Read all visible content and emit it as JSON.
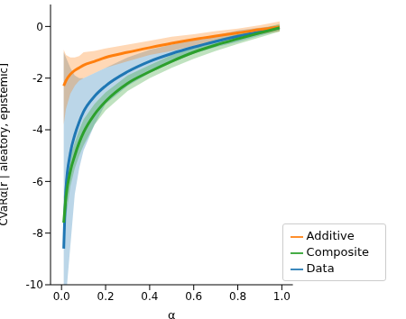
{
  "chart_data": {
    "type": "line",
    "x_label": "α",
    "y_label": "CVaRα[r | aleatory, epistemic]",
    "x": [
      0.01,
      0.02,
      0.04,
      0.06,
      0.08,
      0.1,
      0.15,
      0.2,
      0.3,
      0.4,
      0.5,
      0.6,
      0.7,
      0.8,
      0.9,
      0.99
    ],
    "xlim": [
      -0.05,
      1.05
    ],
    "xticks": [
      {
        "value": 0,
        "label": "0.0"
      },
      {
        "value": 0.2,
        "label": "0.2"
      },
      {
        "value": 0.4,
        "label": "0.4"
      },
      {
        "value": 0.6,
        "label": "0.6"
      },
      {
        "value": 0.8,
        "label": "0.8"
      },
      {
        "value": 1,
        "label": "1.0"
      }
    ],
    "ylim": [
      -10,
      0.85
    ],
    "yticks": [
      -10,
      -8,
      -6,
      -4,
      -2,
      0
    ],
    "legend": "lower right",
    "series": [
      {
        "name": "Data",
        "color": "#1f77b4",
        "values": [
          -8.6,
          -6.3,
          -4.9,
          -4.2,
          -3.7,
          -3.3,
          -2.7,
          -2.3,
          -1.75,
          -1.35,
          -1.05,
          -0.8,
          -0.58,
          -0.38,
          -0.2,
          -0.05
        ],
        "lower": [
          -10.5,
          -10.5,
          -8.5,
          -6.5,
          -5.5,
          -4.8,
          -3.8,
          -3.0,
          -2.3,
          -1.8,
          -1.4,
          -1.05,
          -0.8,
          -0.6,
          -0.35,
          -0.15
        ],
        "upper": [
          -1.0,
          -1.2,
          -1.6,
          -1.9,
          -2.0,
          -2.0,
          -1.8,
          -1.6,
          -1.2,
          -0.9,
          -0.7,
          -0.5,
          -0.35,
          -0.15,
          -0.05,
          0.05
        ]
      },
      {
        "name": "Additive",
        "color": "#ff7f0e",
        "values": [
          -2.3,
          -2.1,
          -1.85,
          -1.7,
          -1.6,
          -1.5,
          -1.35,
          -1.2,
          -1.0,
          -0.82,
          -0.65,
          -0.5,
          -0.37,
          -0.25,
          -0.12,
          -0.02
        ],
        "lower": [
          -3.8,
          -3.2,
          -2.6,
          -2.3,
          -2.1,
          -2.0,
          -1.8,
          -1.6,
          -1.35,
          -1.1,
          -0.95,
          -0.75,
          -0.6,
          -0.45,
          -0.3,
          -0.2
        ],
        "upper": [
          -0.9,
          -1.1,
          -1.2,
          -1.2,
          -1.15,
          -1.0,
          -0.95,
          -0.85,
          -0.7,
          -0.55,
          -0.4,
          -0.3,
          -0.18,
          -0.08,
          0.05,
          0.2
        ]
      },
      {
        "name": "Composite",
        "color": "#2ca02c",
        "values": [
          -7.6,
          -6.6,
          -5.6,
          -5.0,
          -4.5,
          -4.1,
          -3.4,
          -2.9,
          -2.2,
          -1.75,
          -1.35,
          -1.0,
          -0.72,
          -0.48,
          -0.25,
          -0.05
        ],
        "lower": [
          -8.6,
          -7.4,
          -6.2,
          -5.5,
          -5.0,
          -4.6,
          -3.8,
          -3.25,
          -2.5,
          -2.0,
          -1.6,
          -1.25,
          -0.95,
          -0.68,
          -0.42,
          -0.2
        ],
        "upper": [
          -6.6,
          -5.8,
          -5.0,
          -4.5,
          -4.0,
          -3.6,
          -3.0,
          -2.55,
          -1.9,
          -1.5,
          -1.1,
          -0.8,
          -0.52,
          -0.3,
          -0.1,
          0.1
        ]
      }
    ]
  }
}
